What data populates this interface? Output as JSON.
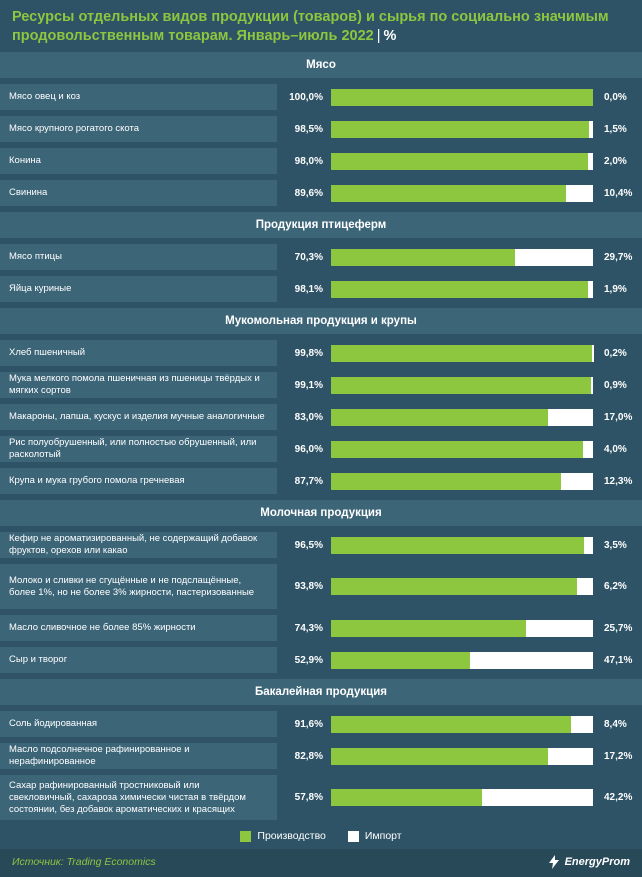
{
  "header": {
    "title": "Ресурсы отдельных видов продукции (товаров) и сырья по социально значимым продовольственным товарам. Январь–июль 2022",
    "separator": "|",
    "unit": "%"
  },
  "chart_data": {
    "type": "bar",
    "orientation": "horizontal",
    "stacked": true,
    "value_format": "percent",
    "series": [
      {
        "name": "Производство",
        "color": "#8dc63f"
      },
      {
        "name": "Импорт",
        "color": "#ffffff"
      }
    ],
    "groups": [
      {
        "title": "Мясо",
        "items": [
          {
            "label": "Мясо овец и коз",
            "production": 100.0,
            "import": 0.0,
            "production_label": "100,0%",
            "import_label": "0,0%"
          },
          {
            "label": "Мясо крупного рогатого скота",
            "production": 98.5,
            "import": 1.5,
            "production_label": "98,5%",
            "import_label": "1,5%"
          },
          {
            "label": "Конина",
            "production": 98.0,
            "import": 2.0,
            "production_label": "98,0%",
            "import_label": "2,0%"
          },
          {
            "label": "Свинина",
            "production": 89.6,
            "import": 10.4,
            "production_label": "89,6%",
            "import_label": "10,4%"
          }
        ]
      },
      {
        "title": "Продукция птицеферм",
        "items": [
          {
            "label": "Мясо птицы",
            "production": 70.3,
            "import": 29.7,
            "production_label": "70,3%",
            "import_label": "29,7%"
          },
          {
            "label": "Яйца куриные",
            "production": 98.1,
            "import": 1.9,
            "production_label": "98,1%",
            "import_label": "1,9%"
          }
        ]
      },
      {
        "title": "Мукомольная продукция и крупы",
        "items": [
          {
            "label": "Хлеб пшеничный",
            "production": 99.8,
            "import": 0.2,
            "production_label": "99,8%",
            "import_label": "0,2%"
          },
          {
            "label": "Мука мелкого помола пшеничная из пшеницы твёрдых и мягких сортов",
            "production": 99.1,
            "import": 0.9,
            "production_label": "99,1%",
            "import_label": "0,9%"
          },
          {
            "label": "Макароны, лапша, кускус и изделия мучные аналогичные",
            "production": 83.0,
            "import": 17.0,
            "production_label": "83,0%",
            "import_label": "17,0%"
          },
          {
            "label": "Рис полуобрушенный, или полностью обрушенный, или расколотый",
            "production": 96.0,
            "import": 4.0,
            "production_label": "96,0%",
            "import_label": "4,0%"
          },
          {
            "label": "Крупа и мука грубого помола гречневая",
            "production": 87.7,
            "import": 12.3,
            "production_label": "87,7%",
            "import_label": "12,3%"
          }
        ]
      },
      {
        "title": "Молочная продукция",
        "items": [
          {
            "label": "Кефир не ароматизированный, не содержащий добавок фруктов, орехов или какао",
            "production": 96.5,
            "import": 3.5,
            "production_label": "96,5%",
            "import_label": "3,5%"
          },
          {
            "label": "Молоко и сливки не сгущённые и не подслащённые, более 1%, но не более 3% жирности, пастеризованные",
            "production": 93.8,
            "import": 6.2,
            "production_label": "93,8%",
            "import_label": "6,2%"
          },
          {
            "label": "Масло сливочное не более 85% жирности",
            "production": 74.3,
            "import": 25.7,
            "production_label": "74,3%",
            "import_label": "25,7%"
          },
          {
            "label": "Сыр и творог",
            "production": 52.9,
            "import": 47.1,
            "production_label": "52,9%",
            "import_label": "47,1%"
          }
        ]
      },
      {
        "title": "Бакалейная продукция",
        "items": [
          {
            "label": "Соль йодированная",
            "production": 91.6,
            "import": 8.4,
            "production_label": "91,6%",
            "import_label": "8,4%"
          },
          {
            "label": "Масло подсолнечное рафинированное и нерафинированное",
            "production": 82.8,
            "import": 17.2,
            "production_label": "82,8%",
            "import_label": "17,2%"
          },
          {
            "label": "Сахар рафинированный тростниковый или свекловичный, сахароза химически чистая в твёрдом состоянии, без добавок ароматических и красящих",
            "production": 57.8,
            "import": 42.2,
            "production_label": "57,8%",
            "import_label": "42,2%"
          }
        ]
      }
    ],
    "legend": {
      "position": "bottom"
    },
    "grid": false
  },
  "footer": {
    "source": "Источник: Trading Economics",
    "logo_text": "EnergyProm"
  }
}
